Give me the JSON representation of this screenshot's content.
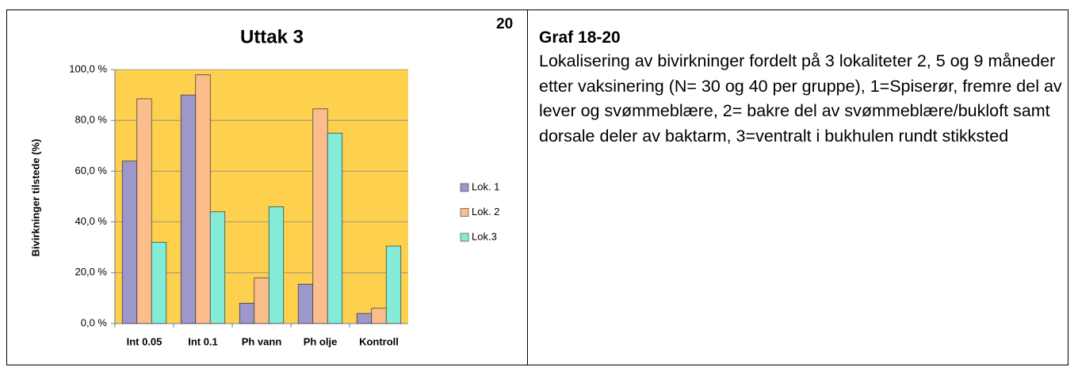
{
  "chart_data": {
    "type": "bar",
    "title": "Uttak 3",
    "y_label": "Bivirkninger tilstede (%)",
    "categories": [
      "Int 0.05",
      "Int 0.1",
      "Ph vann",
      "Ph olje",
      "Kontroll"
    ],
    "series": [
      {
        "name": "Lok. 1",
        "color": "#9e97c9",
        "values": [
          64,
          90,
          8,
          15.5,
          4
        ]
      },
      {
        "name": "Lok. 2",
        "color": "#fbbd8c",
        "values": [
          88.5,
          98,
          18,
          84.5,
          6
        ]
      },
      {
        "name": "Lok.3",
        "color": "#84ecd6",
        "values": [
          32,
          44,
          46,
          75,
          30.5
        ]
      }
    ],
    "ylim": [
      0,
      100
    ],
    "yticks": [
      {
        "value": 0,
        "label": "0,0 %"
      },
      {
        "value": 20,
        "label": "20,0 %"
      },
      {
        "value": 40,
        "label": "40,0 %"
      },
      {
        "value": 60,
        "label": "60,0 %"
      },
      {
        "value": 80,
        "label": "80,0 %"
      },
      {
        "value": 100,
        "label": "100,0 %"
      }
    ],
    "grid": true,
    "legend": "right",
    "plot_background": "#fdd04d"
  },
  "figure_number": "20",
  "caption": {
    "title": "Graf 18-20",
    "text": "Lokalisering av bivirkninger fordelt på 3 lokaliteter 2, 5 og 9 måneder etter vaksinering (N= 30 og 40 per gruppe), 1=Spiserør, fremre del av lever og svømmeblære, 2= bakre del av svømmeblære/bukloft samt dorsale deler av baktarm, 3=ventralt i bukhulen rundt stikksted"
  }
}
